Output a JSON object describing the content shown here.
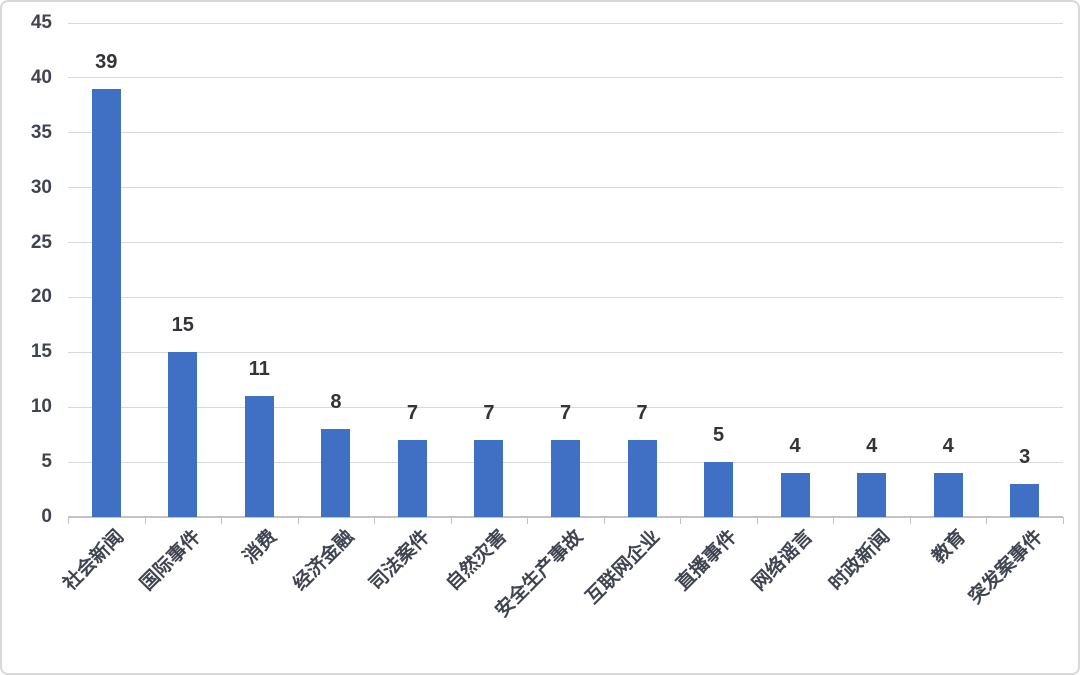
{
  "chart_data": {
    "type": "bar",
    "title": "",
    "xlabel": "",
    "ylabel": "",
    "categories": [
      "社会新闻",
      "国际事件",
      "消费",
      "经济金融",
      "司法案件",
      "自然灾害",
      "安全生产事故",
      "互联网企业",
      "直播事件",
      "网络谣言",
      "时政新闻",
      "教育",
      "突发案事件"
    ],
    "values": [
      39,
      15,
      11,
      8,
      7,
      7,
      7,
      7,
      5,
      4,
      4,
      4,
      3
    ],
    "ylim": [
      0,
      45
    ],
    "ytick_step": 5,
    "ytick_labels": [
      "0",
      "5",
      "10",
      "15",
      "20",
      "25",
      "30",
      "35",
      "40",
      "45"
    ],
    "grid": true,
    "legend_position": "none",
    "bar_color": "#3F70C4",
    "value_label_color": "#333338",
    "tick_label_color": "#3F4450",
    "gridline_color": "#d9d9d9",
    "axis_color": "#c3c3c3",
    "background_color": "#ffffff",
    "border_color": "#d9d9d9"
  }
}
